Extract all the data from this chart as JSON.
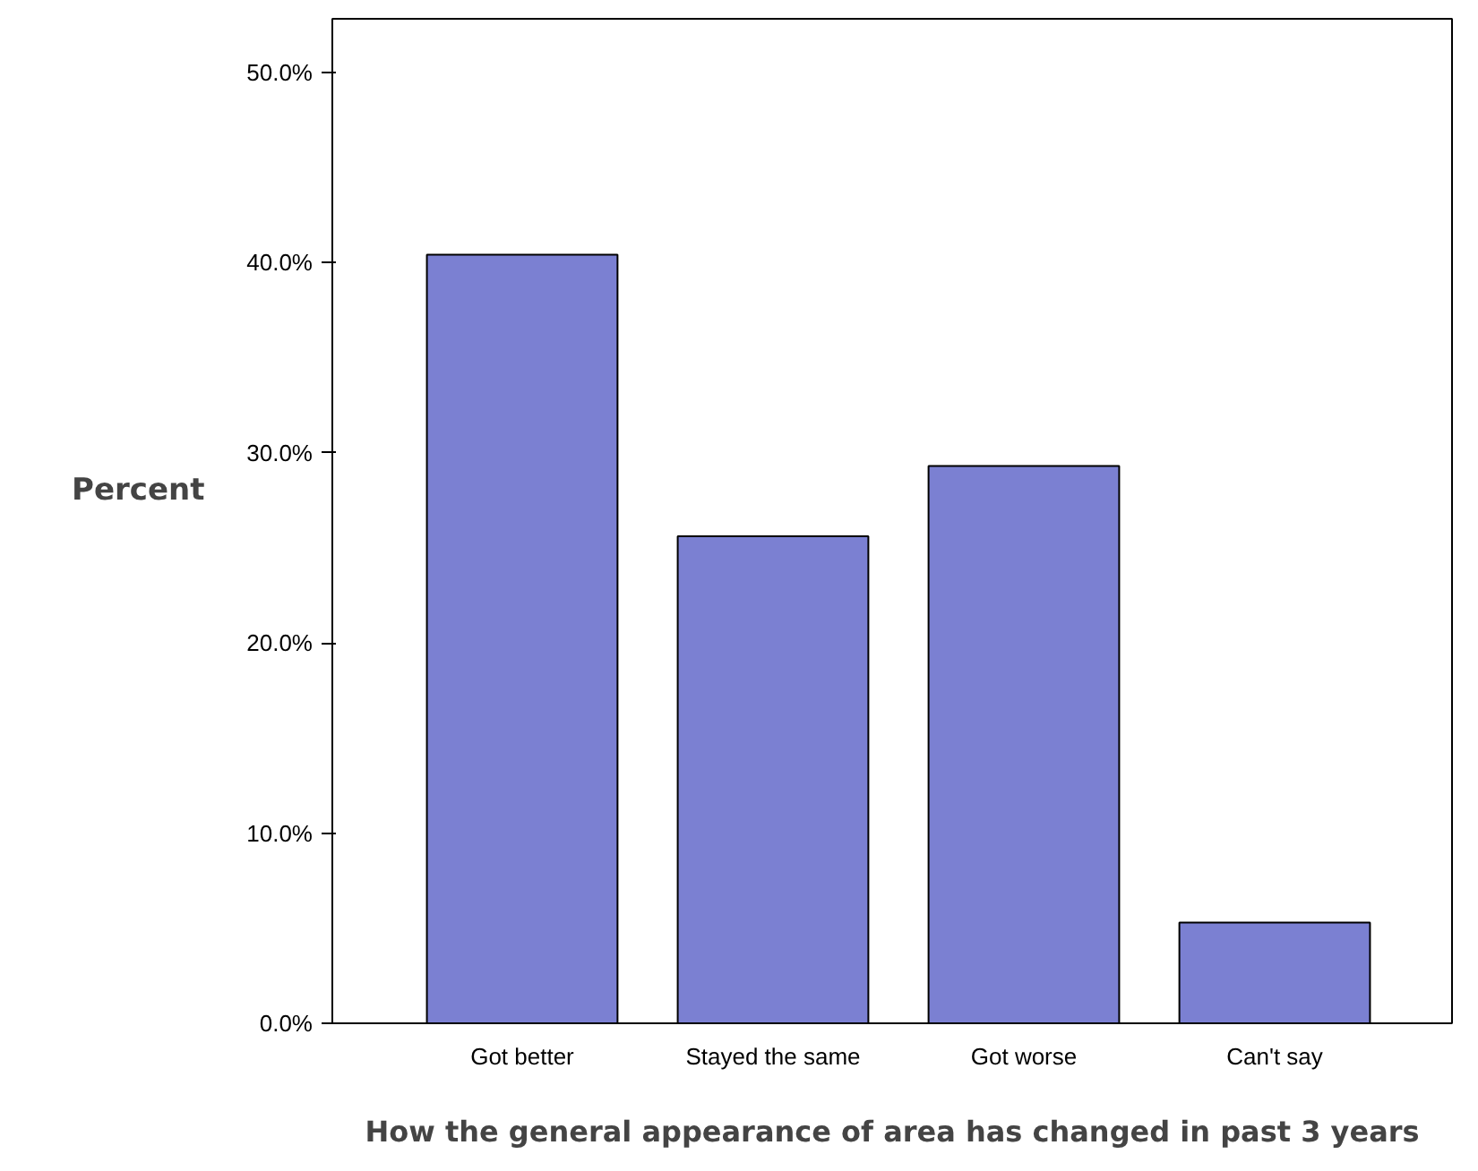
{
  "chart_data": {
    "type": "bar",
    "xlabel": "How the general appearance of area has changed in past 3 years",
    "ylabel": "Percent",
    "categories": [
      "Got better",
      "Stayed the same",
      "Got worse",
      "Can't say"
    ],
    "values": [
      40.4,
      25.6,
      29.3,
      5.3
    ],
    "color": "#7b80d2",
    "ylim": [
      0,
      52.8
    ],
    "yticks": [
      {
        "value": 0,
        "label": "0.0%"
      },
      {
        "value": 10,
        "label": "10.0%"
      },
      {
        "value": 20,
        "label": "20.0%"
      },
      {
        "value": 30,
        "label": "30.0%"
      },
      {
        "value": 40,
        "label": "40.0%"
      },
      {
        "value": 50,
        "label": "50.0%"
      }
    ],
    "grid": false
  }
}
